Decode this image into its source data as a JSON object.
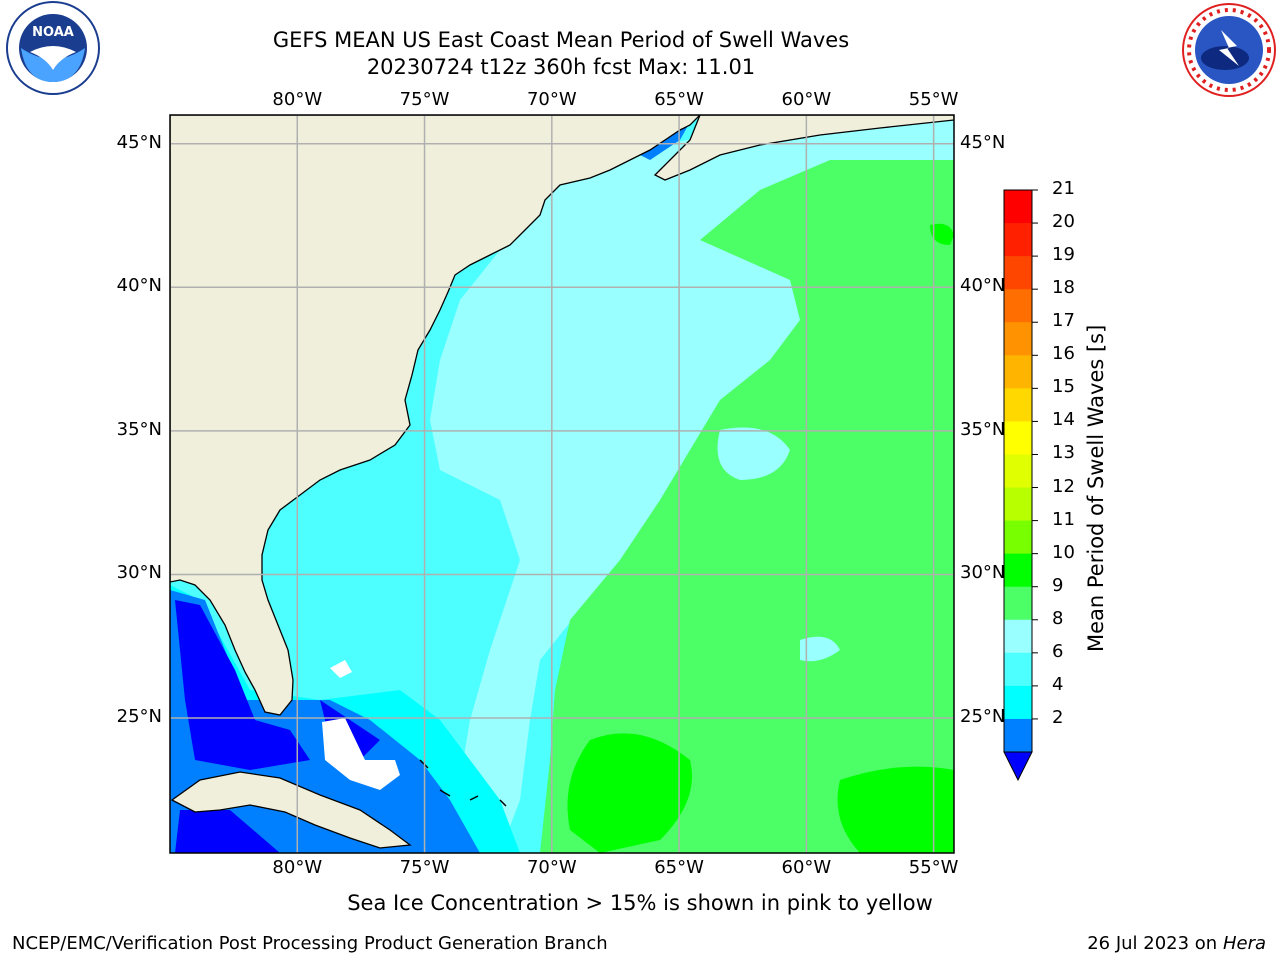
{
  "title": {
    "line1": "GEFS MEAN US East Coast Mean Period of Swell Waves",
    "line2": "20230724 t12z 360h fcst   Max: 11.01"
  },
  "map": {
    "lon_labels": [
      "80°W",
      "75°W",
      "70°W",
      "65°W",
      "60°W",
      "55°W"
    ],
    "lat_labels": [
      "45°N",
      "40°N",
      "35°N",
      "30°N",
      "25°N"
    ],
    "lon_range_deg_w": [
      85,
      54.2
    ],
    "lat_range_deg_n": [
      20.3,
      46
    ]
  },
  "colorbar": {
    "label": "Mean Period of Swell Waves [s]",
    "ticks": [
      "21",
      "20",
      "19",
      "18",
      "17",
      "16",
      "15",
      "14",
      "13",
      "12",
      "11",
      "10",
      "9",
      "8",
      "6",
      "4",
      "2"
    ],
    "colors": [
      "#ff0000",
      "#ff2000",
      "#ff4600",
      "#ff6e00",
      "#ff9200",
      "#ffb400",
      "#ffd800",
      "#ffff00",
      "#e0ff00",
      "#b8ff00",
      "#78ff00",
      "#00ff00",
      "#4cff66",
      "#99ffff",
      "#4dffff",
      "#00ffff",
      "#0080ff"
    ],
    "under_color": "#0000ff"
  },
  "note": "Sea Ice Concentration > 15% is shown in pink to yellow",
  "footer": {
    "left": "NCEP/EMC/Verification Post Processing Product Generation Branch",
    "right_prefix": "26 Jul 2023 on ",
    "right_machine": "Hera"
  },
  "logos": {
    "left_icon": "noaa-logo",
    "left_text": "NOAA",
    "right_icon": "nws-logo",
    "right_text": "NATIONAL WEATHER SERVICE"
  }
}
